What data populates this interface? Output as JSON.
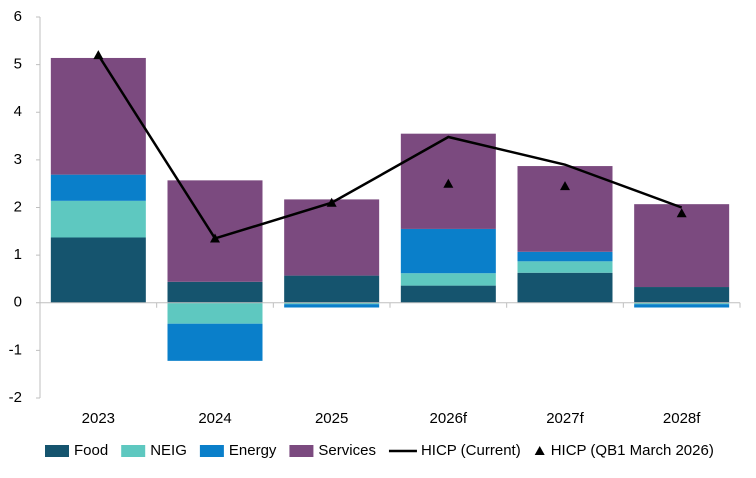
{
  "chart_data": {
    "type": "bar",
    "stacked": true,
    "categories": [
      "2023",
      "2024",
      "2025",
      "2026f",
      "2027f",
      "2028f"
    ],
    "ylim": [
      -2,
      6
    ],
    "yticks": [
      -2,
      -1,
      0,
      1,
      2,
      3,
      4,
      5,
      6
    ],
    "legend": "bottom",
    "series": [
      {
        "name": "Food",
        "type": "bar",
        "color": "#15546e",
        "values": [
          1.37,
          0.44,
          0.57,
          0.36,
          0.63,
          0.33
        ]
      },
      {
        "name": "NEIG",
        "type": "bar",
        "color": "#5ec8c0",
        "values": [
          0.77,
          -0.44,
          -0.03,
          0.26,
          0.24,
          -0.03
        ]
      },
      {
        "name": "Energy",
        "type": "bar",
        "color": "#0a7fca",
        "values": [
          0.55,
          -0.78,
          -0.07,
          0.93,
          0.2,
          -0.07
        ]
      },
      {
        "name": "Services",
        "type": "bar",
        "color": "#7b4a7f",
        "values": [
          2.45,
          2.13,
          1.6,
          2.0,
          1.8,
          1.74
        ]
      },
      {
        "name": "HICP (Current)",
        "type": "line",
        "color": "#000000",
        "values": [
          5.2,
          1.35,
          2.1,
          3.48,
          2.9,
          2.0
        ]
      },
      {
        "name": "HICP (QB1 March 2026)",
        "type": "marker",
        "color": "#000000",
        "values": [
          5.2,
          1.35,
          2.1,
          2.5,
          2.45,
          1.88
        ]
      }
    ]
  }
}
